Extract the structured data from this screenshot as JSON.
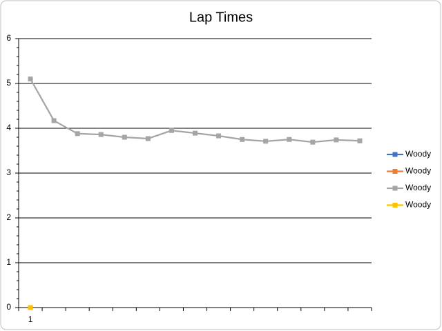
{
  "chart_data": {
    "type": "line",
    "title": "Lap Times",
    "categories": [
      "1",
      null,
      null,
      null,
      null,
      null,
      null,
      null,
      null,
      null,
      null,
      null,
      null,
      null,
      null
    ],
    "series": [
      {
        "name": "Woody",
        "color": "#4472c4",
        "values": [
          0,
          null,
          null,
          null,
          null,
          null,
          null,
          null,
          null,
          null,
          null,
          null,
          null,
          null,
          null
        ]
      },
      {
        "name": "Woody",
        "color": "#ed7d31",
        "values": [
          0,
          null,
          null,
          null,
          null,
          null,
          null,
          null,
          null,
          null,
          null,
          null,
          null,
          null,
          null
        ]
      },
      {
        "name": "Woody",
        "color": "#a5a5a5",
        "values": [
          5.1,
          4.17,
          3.88,
          3.86,
          3.8,
          3.77,
          3.95,
          3.89,
          3.83,
          3.75,
          3.71,
          3.75,
          3.69,
          3.74,
          3.72
        ]
      },
      {
        "name": "Woody",
        "color": "#ffc000",
        "values": [
          0,
          null,
          null,
          null,
          null,
          null,
          null,
          null,
          null,
          null,
          null,
          null,
          null,
          null,
          null
        ]
      }
    ],
    "ylim": [
      0,
      6
    ],
    "yticks": [
      0,
      1,
      2,
      3,
      4,
      5,
      6
    ],
    "yminor": 5,
    "grid": true,
    "legend": "right"
  }
}
